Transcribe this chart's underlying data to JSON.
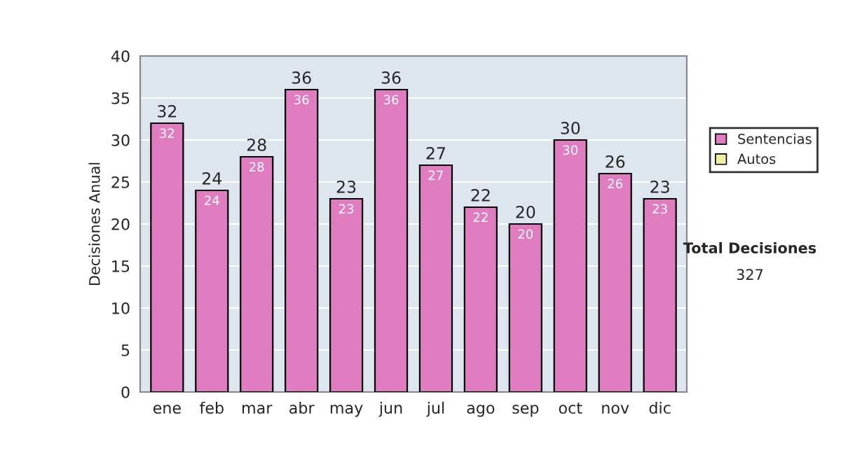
{
  "chart_data": {
    "type": "bar",
    "stacked": true,
    "ylabel": "Decisiones Anual",
    "categories": [
      "ene",
      "feb",
      "mar",
      "abr",
      "may",
      "jun",
      "jul",
      "ago",
      "sep",
      "oct",
      "nov",
      "dic"
    ],
    "series": [
      {
        "name": "Sentencias",
        "color": "#e07cc0",
        "values": [
          32,
          24,
          28,
          36,
          23,
          36,
          27,
          22,
          20,
          30,
          26,
          23
        ],
        "value_labels": [
          "32",
          "24",
          "28",
          "36",
          "23",
          "36",
          "27",
          "22",
          "20",
          "30",
          "26",
          "23"
        ]
      },
      {
        "name": "Autos",
        "color": "#f0f0a0",
        "values": [
          null,
          null,
          null,
          null,
          null,
          null,
          null,
          null,
          null,
          null,
          null,
          null
        ]
      }
    ],
    "totals": [
      "32",
      "24",
      "28",
      "36",
      "23",
      "36",
      "27",
      "22",
      "20",
      "30",
      "26",
      "23"
    ],
    "ylim": [
      0,
      40
    ],
    "yticks": [
      0,
      5,
      10,
      15,
      20,
      25,
      30,
      35,
      40
    ],
    "grid": "y",
    "legend": "right",
    "annotations": [
      "Total Decisiones",
      "327"
    ]
  }
}
